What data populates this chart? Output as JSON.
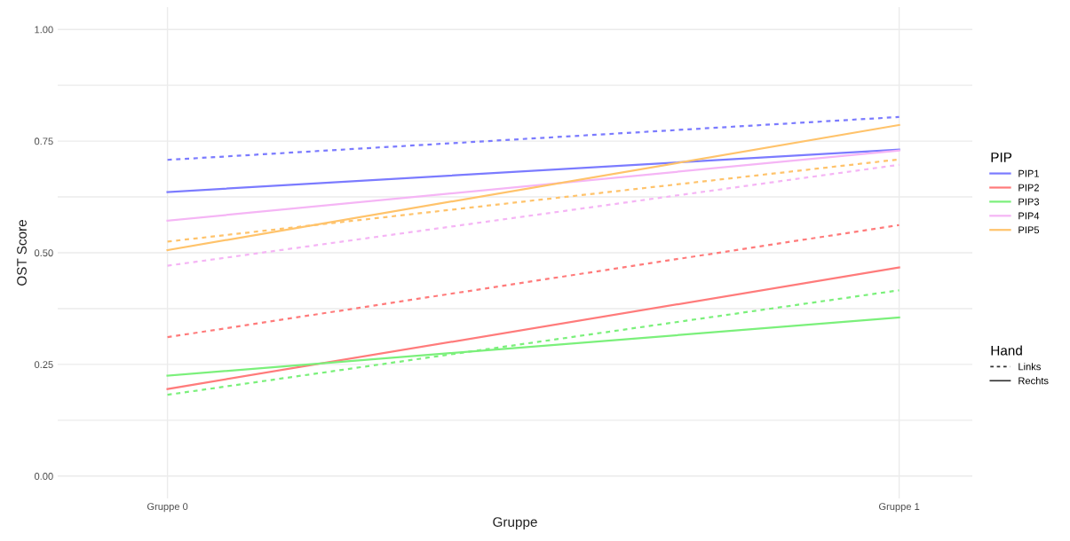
{
  "chart_data": {
    "type": "line",
    "xlabel": "Gruppe",
    "ylabel": "OST Score",
    "categories": [
      "Gruppe 0",
      "Gruppe 1"
    ],
    "ylim": [
      -0.05,
      1.05
    ],
    "yticks": [
      {
        "value": 0,
        "label": "0.00"
      },
      {
        "value": 0.125,
        "label": null
      },
      {
        "value": 0.25,
        "label": "0.25"
      },
      {
        "value": 0.375,
        "label": null
      },
      {
        "value": 0.5,
        "label": "0.50"
      },
      {
        "value": 0.625,
        "label": null
      },
      {
        "value": 0.75,
        "label": "0.75"
      },
      {
        "value": 0.875,
        "label": null
      },
      {
        "value": 1,
        "label": "1.00"
      }
    ],
    "grid": true,
    "legend": "right",
    "legend_title": [
      "PIP",
      "Hand"
    ],
    "marker": "none",
    "annotations": [
      "Links",
      "Rechts"
    ],
    "series": [
      {
        "line_style": "dashed",
        "color": "#7b7bff",
        "values": [
          0.708,
          0.804
        ]
      },
      {
        "name": "PIP1",
        "line_style": "solid",
        "color": "#7b7bff",
        "values": [
          0.636,
          0.731
        ]
      },
      {
        "line_style": "dashed",
        "color": "#ff7b7b",
        "values": [
          0.311,
          0.562
        ]
      },
      {
        "name": "PIP2",
        "line_style": "solid",
        "color": "#ff7b7b",
        "values": [
          0.195,
          0.467
        ]
      },
      {
        "line_style": "dashed",
        "color": "#7bf07b",
        "values": [
          0.182,
          0.416
        ]
      },
      {
        "name": "PIP3",
        "line_style": "solid",
        "color": "#7bf07b",
        "values": [
          0.225,
          0.355
        ]
      },
      {
        "line_style": "dashed",
        "color": "#f5b5f5",
        "values": [
          0.471,
          0.697
        ]
      },
      {
        "name": "PIP4",
        "line_style": "solid",
        "color": "#f5b5f5",
        "values": [
          0.572,
          0.729
        ]
      },
      {
        "line_style": "dashed",
        "color": "#ffc36b",
        "values": [
          0.525,
          0.709
        ]
      },
      {
        "name": "PIP5",
        "line_style": "solid",
        "color": "#ffc36b",
        "values": [
          0.506,
          0.786
        ]
      }
    ]
  }
}
